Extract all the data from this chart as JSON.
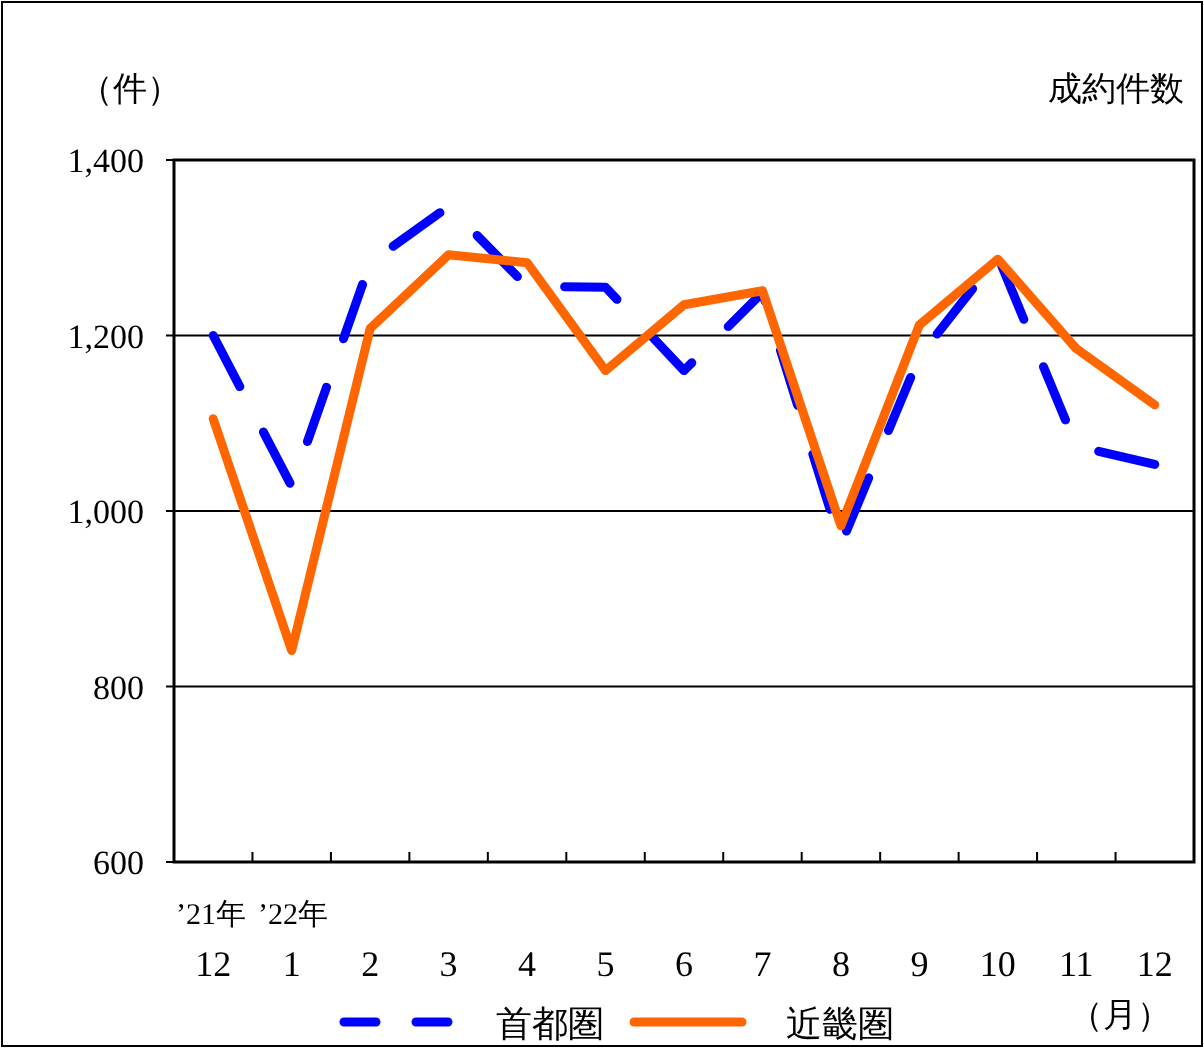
{
  "chart_data": {
    "type": "line",
    "title": "成約件数",
    "ylabel": "（件）",
    "xlabel": "（月）",
    "annotations": [
      "’21年",
      "’22年"
    ],
    "categories": [
      "12",
      "1",
      "2",
      "3",
      "4",
      "5",
      "6",
      "7",
      "8",
      "9",
      "10",
      "11",
      "12"
    ],
    "series": [
      {
        "name": "首都圏",
        "color": "#0000ff",
        "line_style": "dashed",
        "values": [
          1200,
          1028,
          1283,
          1347,
          1256,
          1255,
          1160,
          1249,
          962,
          1176,
          1290,
          1074,
          1053
        ]
      },
      {
        "name": "近畿圏",
        "color": "#ff6600",
        "line_style": "solid",
        "values": [
          1105,
          841,
          1208,
          1292,
          1283,
          1160,
          1235,
          1251,
          983,
          1212,
          1287,
          1185,
          1121
        ]
      }
    ],
    "ylim": [
      600,
      1400
    ],
    "yticks": [
      {
        "value": 600,
        "label": "600"
      },
      {
        "value": 800,
        "label": "800"
      },
      {
        "value": 1000,
        "label": "1,000"
      },
      {
        "value": 1200,
        "label": "1,200"
      },
      {
        "value": 1400,
        "label": "1,400"
      }
    ],
    "grid": "y",
    "legend": "bottom",
    "marker": "none"
  }
}
